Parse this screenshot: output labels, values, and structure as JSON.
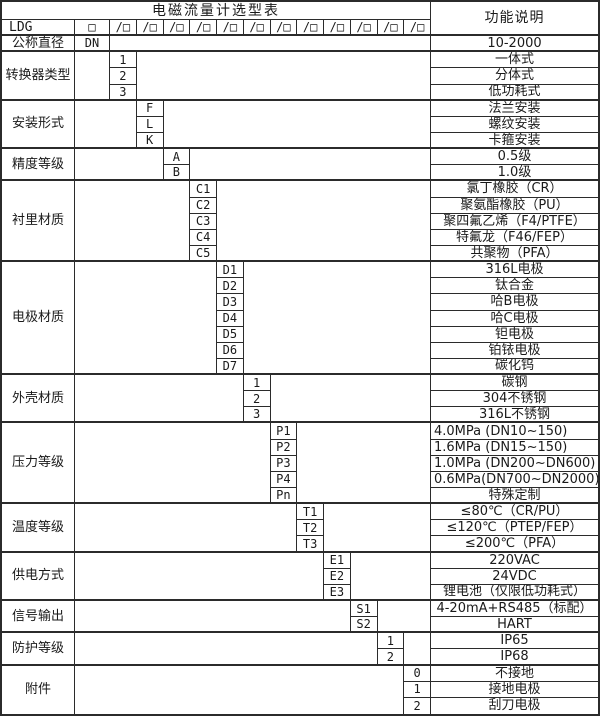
{
  "title": "电磁流量计选型表",
  "desc_header": "功能说明",
  "colors": {
    "border": "#2b2b2b",
    "text": "#1a1a1a",
    "background": "#ffffff"
  },
  "model_row": {
    "prefix": "LDG",
    "first_box": "□",
    "slash_box": "/□",
    "box_count": 12
  },
  "diameter_row": {
    "label": "公称直径",
    "code": "DN",
    "desc": "10-2000"
  },
  "groups": [
    {
      "label": "转换器类型",
      "col": 1,
      "rows": [
        {
          "code": "1",
          "desc": "一体式"
        },
        {
          "code": "2",
          "desc": "分体式"
        },
        {
          "code": "3",
          "desc": "低功耗式"
        }
      ]
    },
    {
      "label": "安装形式",
      "col": 2,
      "rows": [
        {
          "code": "F",
          "desc": "法兰安装"
        },
        {
          "code": "L",
          "desc": "螺纹安装"
        },
        {
          "code": "K",
          "desc": "卡箍安装"
        }
      ]
    },
    {
      "label": "精度等级",
      "col": 3,
      "rows": [
        {
          "code": "A",
          "desc": "0.5级"
        },
        {
          "code": "B",
          "desc": "1.0级"
        }
      ]
    },
    {
      "label": "衬里材质",
      "col": 4,
      "rows": [
        {
          "code": "C1",
          "desc": "氯丁橡胶（CR）"
        },
        {
          "code": "C2",
          "desc": "聚氨酯橡胶（PU）"
        },
        {
          "code": "C3",
          "desc": "聚四氟乙烯（F4/PTFE）"
        },
        {
          "code": "C4",
          "desc": "特氟龙（F46/FEP）"
        },
        {
          "code": "C5",
          "desc": "共聚物（PFA）"
        }
      ]
    },
    {
      "label": "电极材质",
      "col": 5,
      "rows": [
        {
          "code": "D1",
          "desc": "316L电极"
        },
        {
          "code": "D2",
          "desc": "钛合金"
        },
        {
          "code": "D3",
          "desc": "哈B电极"
        },
        {
          "code": "D4",
          "desc": "哈C电极"
        },
        {
          "code": "D5",
          "desc": "钽电极"
        },
        {
          "code": "D6",
          "desc": "铂铱电极"
        },
        {
          "code": "D7",
          "desc": "碳化钨"
        }
      ]
    },
    {
      "label": "外壳材质",
      "col": 6,
      "rows": [
        {
          "code": "1",
          "desc": "碳钢"
        },
        {
          "code": "2",
          "desc": "304不锈钢"
        },
        {
          "code": "3",
          "desc": "316L不锈钢"
        }
      ]
    },
    {
      "label": "压力等级",
      "col": 7,
      "rows": [
        {
          "code": "P1",
          "desc": "4.0MPa (DN10~150)",
          "align": "left"
        },
        {
          "code": "P2",
          "desc": "1.6MPa (DN15~150)",
          "align": "left"
        },
        {
          "code": "P3",
          "desc": "1.0MPa (DN200~DN600)",
          "align": "left"
        },
        {
          "code": "P4",
          "desc": "0.6MPa(DN700~DN2000)",
          "align": "left"
        },
        {
          "code": "Pn",
          "desc": "特殊定制"
        }
      ]
    },
    {
      "label": "温度等级",
      "col": 8,
      "rows": [
        {
          "code": "T1",
          "desc": "≤80℃（CR/PU）"
        },
        {
          "code": "T2",
          "desc": "≤120℃（PTEP/FEP）"
        },
        {
          "code": "T3",
          "desc": "≤200℃（PFA）"
        }
      ]
    },
    {
      "label": "供电方式",
      "col": 9,
      "rows": [
        {
          "code": "E1",
          "desc": "220VAC"
        },
        {
          "code": "E2",
          "desc": "24VDC"
        },
        {
          "code": "E3",
          "desc": "锂电池（仅限低功耗式）"
        }
      ]
    },
    {
      "label": "信号输出",
      "col": 10,
      "rows": [
        {
          "code": "S1",
          "desc": "4-20mA+RS485（标配）"
        },
        {
          "code": "S2",
          "desc": "HART"
        }
      ]
    },
    {
      "label": "防护等级",
      "col": 11,
      "rows": [
        {
          "code": "1",
          "desc": "IP65"
        },
        {
          "code": "2",
          "desc": "IP68"
        }
      ]
    },
    {
      "label": "附件",
      "col": 12,
      "rows": [
        {
          "code": "0",
          "desc": "不接地"
        },
        {
          "code": "1",
          "desc": "接地电极"
        },
        {
          "code": "2",
          "desc": "刮刀电极"
        }
      ]
    }
  ]
}
